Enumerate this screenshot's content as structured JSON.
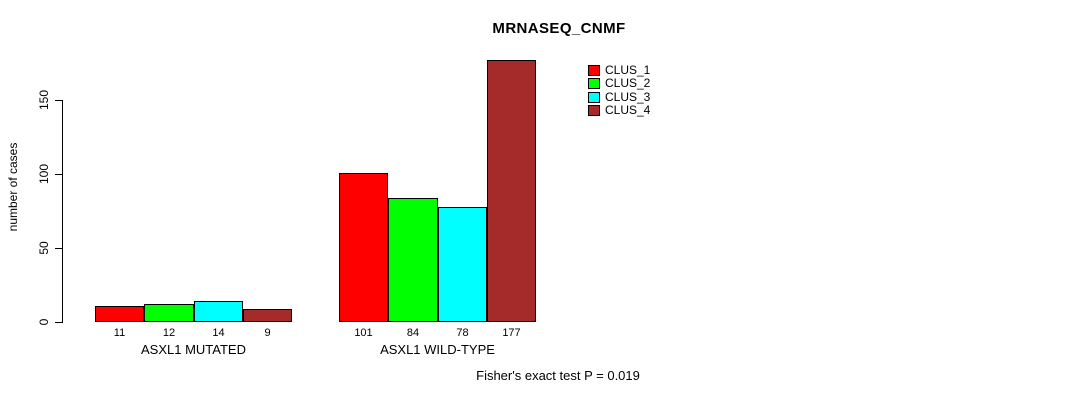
{
  "chart_data": {
    "type": "bar",
    "title": "MRNASEQ_CNMF",
    "ylabel": "number of cases",
    "xlabel": "",
    "ylim": [
      0,
      180
    ],
    "yticks": [
      0,
      50,
      100,
      150
    ],
    "grid": false,
    "categories": [
      "ASXL1 MUTATED",
      "ASXL1 WILD-TYPE"
    ],
    "series": [
      {
        "name": "CLUS_1",
        "color": "#ff0000",
        "values": [
          11,
          101
        ]
      },
      {
        "name": "CLUS_2",
        "color": "#00ff00",
        "values": [
          12,
          84
        ]
      },
      {
        "name": "CLUS_3",
        "color": "#00ffff",
        "values": [
          14,
          78
        ]
      },
      {
        "name": "CLUS_4",
        "color": "#a52a2a",
        "values": [
          9,
          177
        ]
      }
    ],
    "bar_value_labels": {
      "ASXL1 MUTATED": [
        11,
        12,
        14,
        9
      ],
      "ASXL1 WILD-TYPE": [
        101,
        84,
        78,
        177
      ]
    },
    "legend": {
      "position": "top-right",
      "entries": [
        "CLUS_1",
        "CLUS_2",
        "CLUS_3",
        "CLUS_4"
      ]
    },
    "annotation": "Fisher's exact test P = 0.019"
  },
  "colors": {
    "background": "#ffffff",
    "axis": "#000000",
    "text": "#000000"
  }
}
